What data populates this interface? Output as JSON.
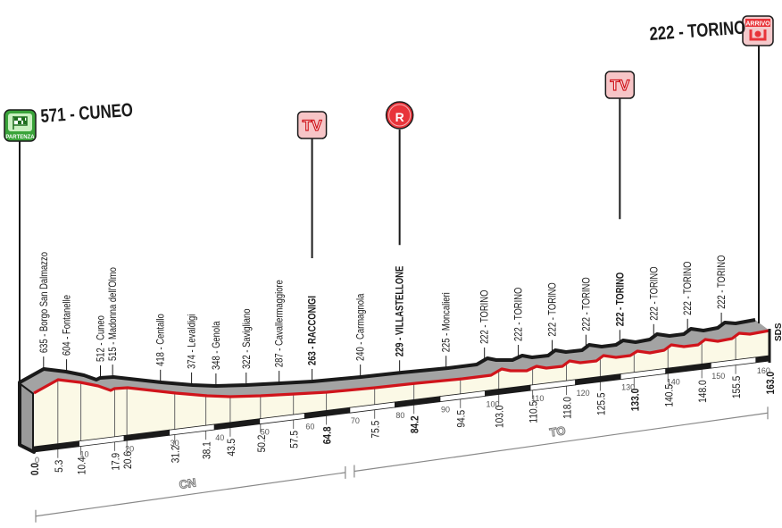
{
  "start": {
    "title": "571 - CUNEO",
    "badge": "PARTENZA"
  },
  "finish": {
    "title": "222 - TORINO",
    "badge": "ARRIVO"
  },
  "markers": [
    {
      "type": "TV",
      "label": "TV",
      "km": 64.8
    },
    {
      "type": "R",
      "label": "R",
      "km": 84.2
    },
    {
      "type": "TV",
      "label": "TV",
      "km": 133.0
    }
  ],
  "chart_data": {
    "type": "area",
    "title": "",
    "xlabel": "",
    "ylabel": "",
    "x_unit": "km",
    "y_unit": "m",
    "xlim": [
      0,
      163.0
    ],
    "grid": false,
    "waypoints": [
      {
        "km": 0.0,
        "km_label": "0.0",
        "alt": 571,
        "label": "",
        "bold": true
      },
      {
        "km": 5.3,
        "km_label": "5.3",
        "alt": 635,
        "label": "635 - Borgo San Dalmazzo",
        "bold": false
      },
      {
        "km": 10.4,
        "km_label": "10.4",
        "alt": 604,
        "label": "604 - Fontanelle",
        "bold": false
      },
      {
        "km": 17.9,
        "km_label": "17.9",
        "alt": 512,
        "label": "512 - Cuneo",
        "bold": false
      },
      {
        "km": 20.6,
        "km_label": "20.6",
        "alt": 515,
        "label": "515 - Madonna dell'Olmo",
        "bold": false
      },
      {
        "km": 31.2,
        "km_label": "31.2",
        "alt": 418,
        "label": "418 - Centallo",
        "bold": false
      },
      {
        "km": 38.1,
        "km_label": "38.1",
        "alt": 374,
        "label": "374 - Levaldigi",
        "bold": false
      },
      {
        "km": 43.5,
        "km_label": "43.5",
        "alt": 348,
        "label": "348 - Genola",
        "bold": false
      },
      {
        "km": 50.2,
        "km_label": "50.2",
        "alt": 322,
        "label": "322 - Savigliano",
        "bold": false
      },
      {
        "km": 57.5,
        "km_label": "57.5",
        "alt": 287,
        "label": "287 - Cavallermaggiore",
        "bold": false
      },
      {
        "km": 64.8,
        "km_label": "64.8",
        "alt": 263,
        "label": "263 - RACCONIGI",
        "bold": true
      },
      {
        "km": 75.5,
        "km_label": "75.5",
        "alt": 240,
        "label": "240 - Carmagnola",
        "bold": false
      },
      {
        "km": 84.2,
        "km_label": "84.2",
        "alt": 229,
        "label": "229 - VILLASTELLONE",
        "bold": true
      },
      {
        "km": 94.5,
        "km_label": "94.5",
        "alt": 225,
        "label": "225 - Moncalieri",
        "bold": false
      },
      {
        "km": 103.0,
        "km_label": "103.0",
        "alt": 222,
        "label": "222 - TORINO",
        "bold": false
      },
      {
        "km": 110.5,
        "km_label": "110.5",
        "alt": 222,
        "label": "222 - TORINO",
        "bold": false
      },
      {
        "km": 118.0,
        "km_label": "118.0",
        "alt": 222,
        "label": "222 - TORINO",
        "bold": false
      },
      {
        "km": 125.5,
        "km_label": "125.5",
        "alt": 222,
        "label": "222 - TORINO",
        "bold": false
      },
      {
        "km": 133.0,
        "km_label": "133.0",
        "alt": 222,
        "label": "222 - TORINO",
        "bold": true
      },
      {
        "km": 140.5,
        "km_label": "140.5",
        "alt": 222,
        "label": "222 - TORINO",
        "bold": false
      },
      {
        "km": 148.0,
        "km_label": "148.0",
        "alt": 222,
        "label": "222 - TORINO",
        "bold": false
      },
      {
        "km": 155.5,
        "km_label": "155.5",
        "alt": 222,
        "label": "222 - TORINO",
        "bold": false
      },
      {
        "km": 163.0,
        "km_label": "163.0",
        "alt": 222,
        "label": "",
        "bold": true
      }
    ],
    "scale_ticks": [
      0,
      10,
      20,
      30,
      40,
      50,
      60,
      70,
      80,
      90,
      100,
      110,
      120,
      130,
      140,
      150,
      160
    ],
    "provinces": [
      {
        "code": "CN",
        "from_km": 0,
        "to_km": 70
      },
      {
        "code": "TO",
        "from_km": 70,
        "to_km": 163
      }
    ],
    "end_note": "SDS",
    "colors": {
      "profile_line": "#d0141b",
      "top_surface": "#a3a3a3",
      "face": "#fbf9e6",
      "outline": "#1a1a1a",
      "badge_start": "#3aa33a",
      "badge_marker": "#e8343a"
    }
  }
}
